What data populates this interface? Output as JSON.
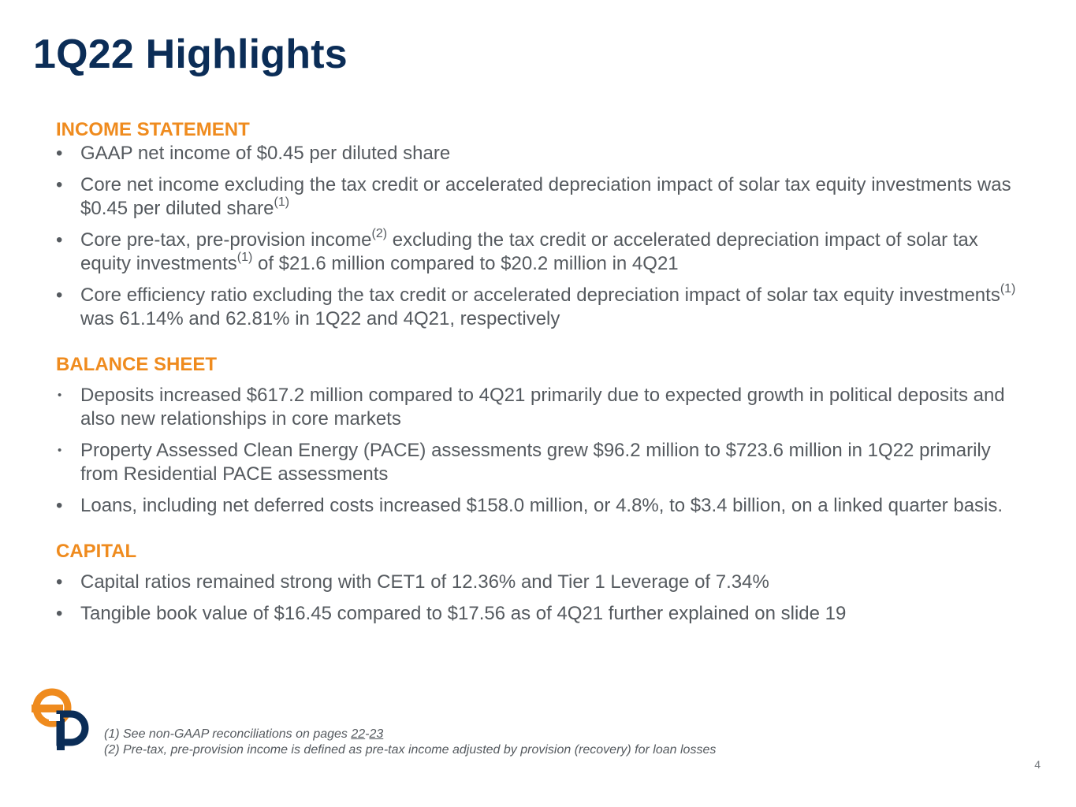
{
  "slide": {
    "title": "1Q22 Highlights",
    "page_number": "4"
  },
  "income_statement": {
    "heading": "INCOME STATEMENT",
    "b1": "GAAP net income of $0.45 per diluted share",
    "b2_text": "Core net income excluding the tax credit or accelerated depreciation impact of solar tax equity investments was $0.45 per diluted share",
    "b2_sup": "(1)",
    "b3_part1": "Core pre-tax, pre-provision income",
    "b3_sup1": "(2)",
    "b3_part2": " excluding the tax credit or accelerated depreciation impact of solar tax equity investments",
    "b3_sup2": "(1)",
    "b3_part3": " of $21.6 million compared to $20.2 million in 4Q21",
    "b4_part1": "Core efficiency ratio excluding the tax credit or accelerated depreciation impact of solar tax equity investments",
    "b4_sup": "(1)",
    "b4_part2": " was 61.14% and 62.81% in 1Q22 and 4Q21, respectively"
  },
  "balance_sheet": {
    "heading": "BALANCE SHEET",
    "b1": "Deposits increased $617.2 million compared to 4Q21 primarily due to expected growth in political deposits and also new relationships in core markets",
    "b2": "Property Assessed Clean Energy (PACE) assessments grew $96.2 million to $723.6 million in 1Q22 primarily from Residential PACE assessments",
    "b3": "Loans, including net deferred costs increased $158.0 million, or 4.8%, to $3.4 billion, on a linked quarter basis."
  },
  "capital": {
    "heading": "CAPITAL",
    "b1": "Capital ratios remained strong with CET1 of 12.36% and Tier 1 Leverage of 7.34%",
    "b2": "Tangible book value of $16.45 compared to $17.56 as of 4Q21 further explained on slide 19"
  },
  "footnotes": {
    "f1_prefix": "(1) See non-GAAP reconciliations on pages ",
    "f1_page_a": "22",
    "f1_dash": "-",
    "f1_page_b": "23",
    "f2": "(2) Pre-tax, pre-provision income is defined as pre-tax income adjusted by provision (recovery) for loan losses"
  },
  "colors": {
    "title": "#0b2d57",
    "section_heading": "#ef8b1e",
    "body_text": "#555a5f",
    "logo_orange": "#ef8b1e",
    "logo_navy": "#0b2d57"
  }
}
